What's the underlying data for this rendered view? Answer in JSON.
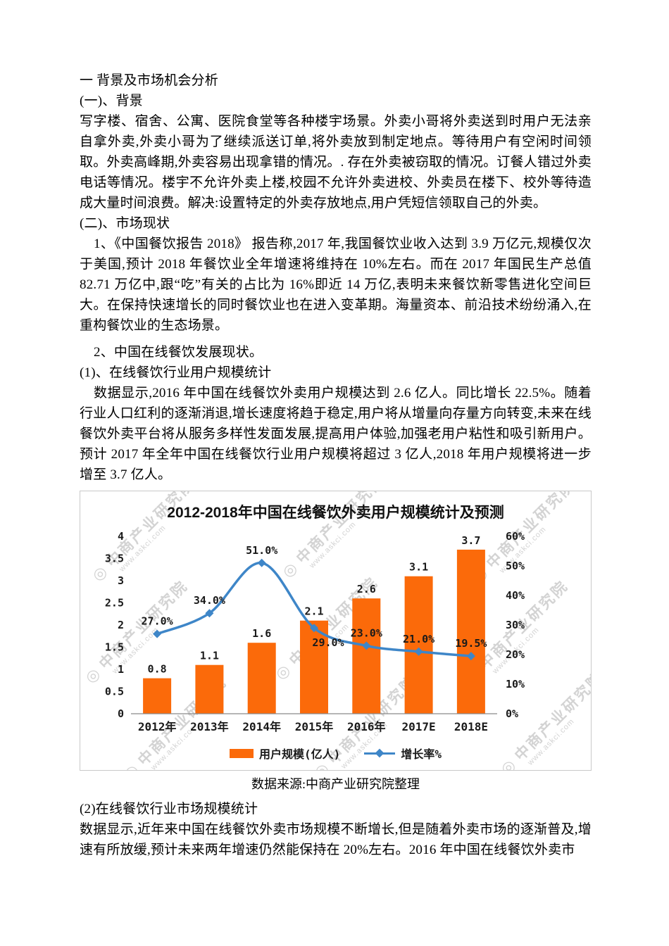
{
  "document": {
    "paragraphs": [
      "一 背景及市场机会分析",
      "(一)、背景",
      "写字楼、宿舍、公寓、医院食堂等各种楼宇场景。外卖小哥将外卖送到时用户无法亲自拿外卖,外卖小哥为了继续派送订单,将外卖放到制定地点。等待用户有空闲时间领取。外卖高峰期,外卖容易出现拿错的情况。. 存在外卖被窃取的情况。订餐人错过外卖电话等情况。楼宇不允许外卖上楼,校园不允许外卖进校、外卖员在楼下、校外等待造成大量时间浪费。解决:设置特定的外卖存放地点,用户凭短信领取自己的外卖。",
      "(二)、市场现状",
      "1、《中国餐饮报告 2018》  报告称,2017 年,我国餐饮业收入达到 3.9 万亿元,规模仅次于美国,预计 2018 年餐饮业全年增速将维持在 10%左右。而在 2017 年国民生产总值 82.71 万亿中,跟“吃”有关的占比为 16%即近 14 万亿,表明未来餐饮新零售进化空间巨大。在保持快速增长的同时餐饮业也在进入变革期。海量资本、前沿技术纷纷涌入,在重构餐饮业的生态场景。",
      "2、中国在线餐饮发展现状。",
      "(1)、在线餐饮行业用户规模统计",
      "数据显示,2016 年中国在线餐饮外卖用户规模达到 2.6 亿人。同比增长 22.5%。随着行业人口红利的逐渐消退,增长速度将趋于稳定,用户将从增量向存量方向转变,未来在线餐饮外卖平台将从服务多样性发面发展,提高用户体验,加强老用户粘性和吸引新用户。预计 2017 年全年中国在线餐饮行业用户规模将超过 3 亿人,2018 年用户规模将进一步增至 3.7 亿人。",
      "(2)在线餐饮行业市场规模统计",
      "数据显示,近年来中国在线餐饮外卖市场规模不断增长,但是随着外卖市场的逐渐普及,增速有所放缓,预计未来两年增速仍然能保持在 20%左右。2016 年中国在线餐饮外卖市"
    ],
    "caption": "数据来源:中商产业研究院整理"
  },
  "chart_data": {
    "type": "bar",
    "title": "2012-2018年中国在线餐饮外卖用户规模统计及预测",
    "categories": [
      "2012年",
      "2013年",
      "2014年",
      "2015年",
      "2016年",
      "2017E",
      "2018E"
    ],
    "series": [
      {
        "name": "用户规模(亿人)",
        "type": "bar",
        "axis": "left",
        "values": [
          0.8,
          1.1,
          1.6,
          2.1,
          2.6,
          3.1,
          3.7
        ]
      },
      {
        "name": "增长率%",
        "type": "line",
        "axis": "right",
        "values": [
          27.0,
          34.0,
          51.0,
          29.0,
          23.0,
          21.0,
          19.5
        ]
      }
    ],
    "left_axis": {
      "min": 0,
      "max": 4,
      "ticks": [
        0,
        0.5,
        1,
        1.5,
        2,
        2.5,
        3,
        3.5,
        4
      ],
      "tick_labels": [
        "0",
        "0.5",
        "1",
        "1.5",
        "2",
        "2.5",
        "3",
        "3.5",
        "4"
      ]
    },
    "right_axis": {
      "min": 0,
      "max": 60,
      "ticks": [
        0,
        10,
        20,
        30,
        40,
        50,
        60
      ],
      "tick_labels": [
        "0%",
        "10%",
        "20%",
        "30%",
        "40%",
        "50%",
        "60%"
      ]
    },
    "grid": false,
    "legend_position": "bottom",
    "colors": {
      "bar": "#fb6a0a",
      "line": "#3e86c8"
    },
    "watermark": {
      "icon": "◎",
      "text": "中商产业研究院",
      "subtext": "www.askci.com"
    }
  }
}
